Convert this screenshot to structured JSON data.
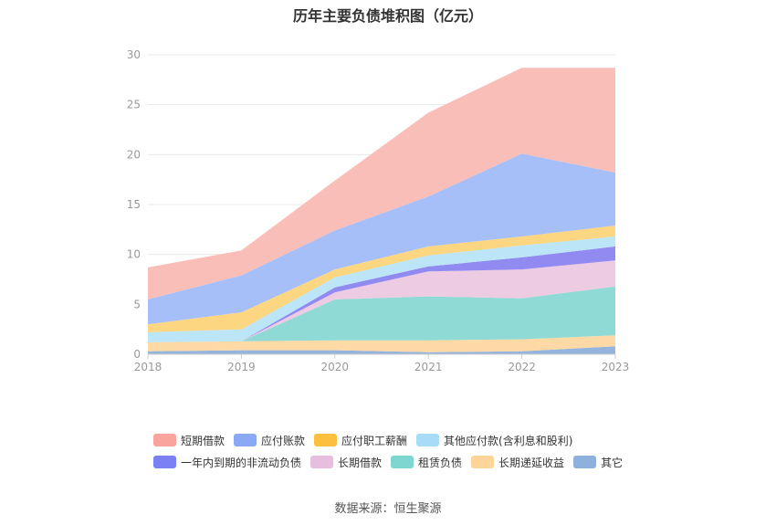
{
  "title": "历年主要负债堆积图（亿元）",
  "source_label": "数据来源：恒生聚源",
  "chart_data": {
    "type": "area",
    "stacked": true,
    "title": "历年主要负债堆积图（亿元）",
    "xlabel": "",
    "ylabel": "",
    "categories": [
      "2018",
      "2019",
      "2020",
      "2021",
      "2022",
      "2023"
    ],
    "ylim": [
      0,
      30
    ],
    "yticks": [
      0,
      5,
      10,
      15,
      20,
      25,
      30
    ],
    "grid": true,
    "legend_position": "bottom",
    "series": [
      {
        "name": "其它",
        "color": "#8eb0dc",
        "values": [
          0.3,
          0.4,
          0.4,
          0.2,
          0.3,
          0.8
        ]
      },
      {
        "name": "长期递延收益",
        "color": "#fdd8a0",
        "values": [
          0.9,
          0.9,
          1.0,
          1.2,
          1.2,
          1.1
        ]
      },
      {
        "name": "租赁负债",
        "color": "#8ad8d4",
        "values": [
          0.0,
          0.0,
          4.1,
          4.4,
          4.1,
          4.9
        ]
      },
      {
        "name": "长期借款",
        "color": "#ecc8e0",
        "values": [
          0.0,
          0.0,
          0.7,
          2.5,
          2.9,
          2.6
        ]
      },
      {
        "name": "一年内到期的非流动负债",
        "color": "#8b85f0",
        "values": [
          0.0,
          0.0,
          0.5,
          0.5,
          1.2,
          1.4
        ]
      },
      {
        "name": "其他应付款(含利息和股利)",
        "color": "#b8e4f8",
        "values": [
          1.0,
          1.2,
          1.0,
          1.1,
          1.2,
          1.0
        ]
      },
      {
        "name": "应付职工薪酬",
        "color": "#fdd47a",
        "values": [
          0.8,
          1.7,
          0.8,
          0.9,
          0.9,
          1.1
        ]
      },
      {
        "name": "应付账款",
        "color": "#a2bcf8",
        "values": [
          2.5,
          3.7,
          3.9,
          5.0,
          8.3,
          5.3
        ]
      },
      {
        "name": "短期借款",
        "color": "#fabab5",
        "values": [
          3.2,
          2.5,
          5.0,
          8.4,
          8.6,
          10.5
        ]
      }
    ]
  },
  "legend": [
    [
      {
        "name": "短期借款",
        "color": "#f9a59d"
      },
      {
        "name": "应付账款",
        "color": "#8aa8f4"
      },
      {
        "name": "应付职工薪酬",
        "color": "#fcc040"
      },
      {
        "name": "其他应付款(含利息和股利)",
        "color": "#a8dcf6"
      }
    ],
    [
      {
        "name": "一年内到期的非流动负债",
        "color": "#7b80f2"
      },
      {
        "name": "长期借款",
        "color": "#e8bede"
      },
      {
        "name": "租赁负债",
        "color": "#7fd6d0"
      },
      {
        "name": "长期递延收益",
        "color": "#fdd49a"
      },
      {
        "name": "其它",
        "color": "#8eb0dc"
      }
    ]
  ]
}
